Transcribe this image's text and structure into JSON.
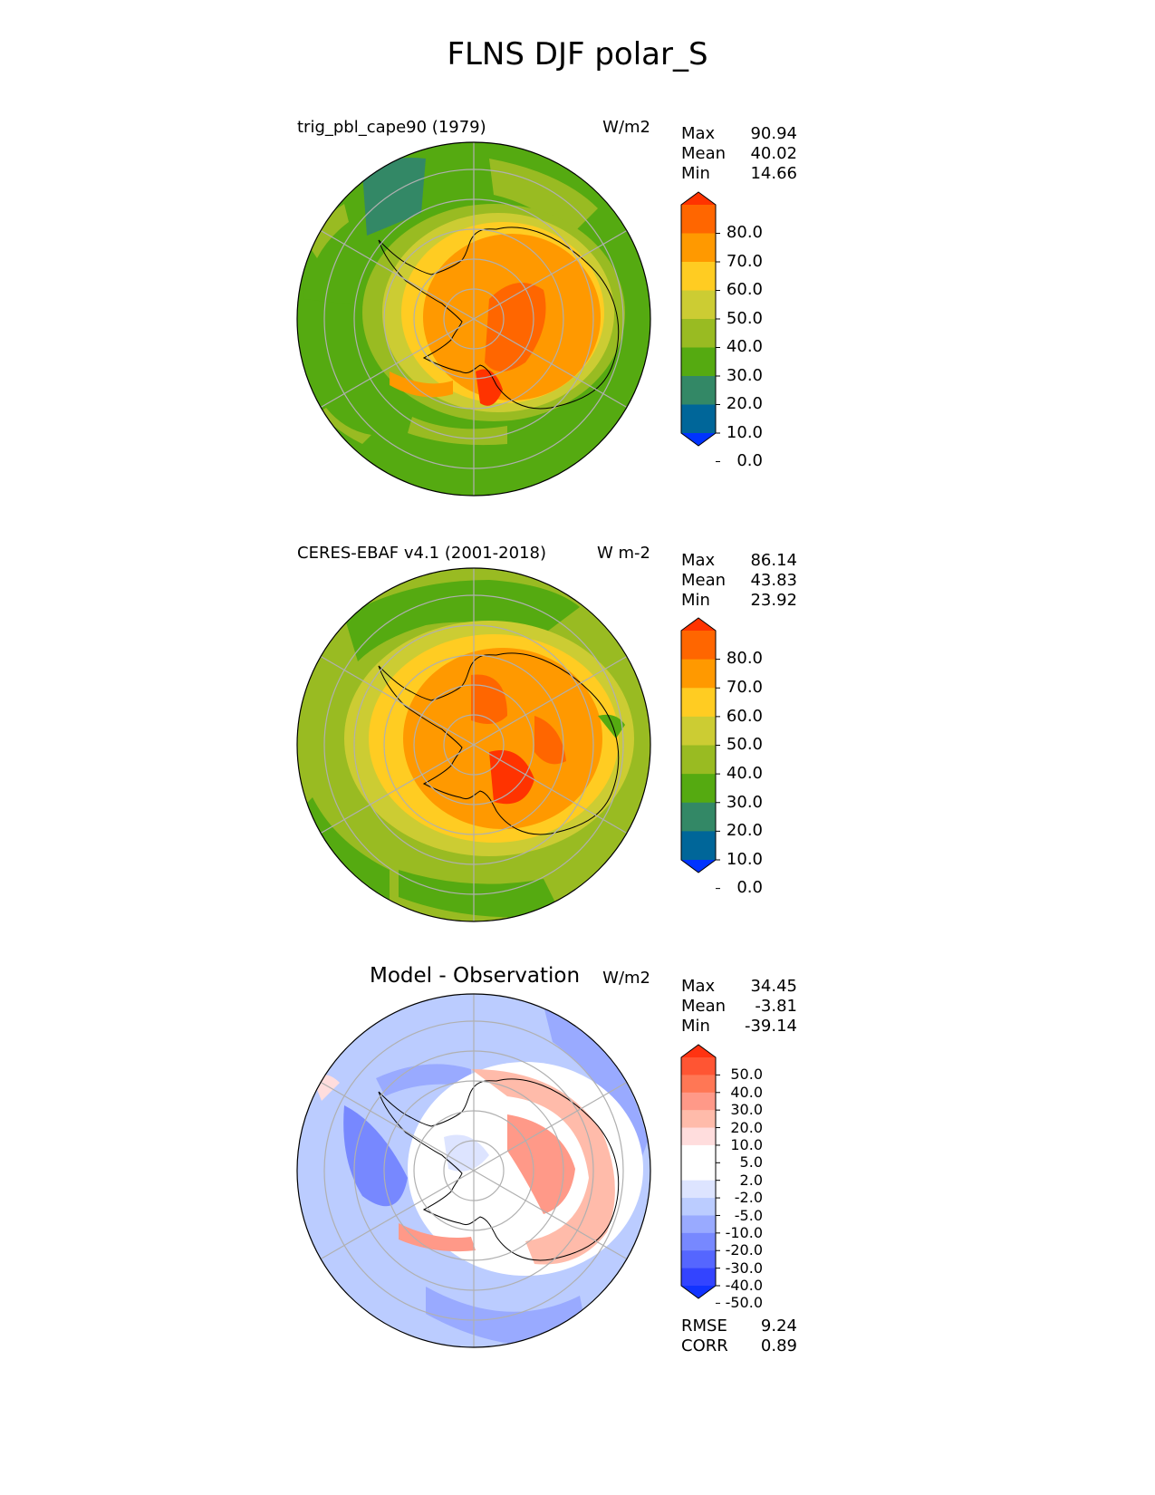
{
  "title": "FLNS DJF polar_S",
  "panels": [
    {
      "id": "model",
      "title": "trig_pbl_cape90 (1979)",
      "units": "W/m2",
      "stats": [
        {
          "label": "Max",
          "value": "90.94"
        },
        {
          "label": "Mean",
          "value": "40.02"
        },
        {
          "label": "Min",
          "value": "14.66"
        }
      ]
    },
    {
      "id": "obs",
      "title": "CERES-EBAF v4.1 (2001-2018)",
      "units": "W m-2",
      "stats": [
        {
          "label": "Max",
          "value": "86.14"
        },
        {
          "label": "Mean",
          "value": "43.83"
        },
        {
          "label": "Min",
          "value": "23.92"
        }
      ]
    },
    {
      "id": "diff",
      "title": "Model - Observation",
      "units": "W/m2",
      "stats": [
        {
          "label": "Max",
          "value": "34.45"
        },
        {
          "label": "Mean",
          "value": "-3.81"
        },
        {
          "label": "Min",
          "value": "-39.14"
        }
      ],
      "extra_stats": [
        {
          "label": "RMSE",
          "value": "9.24"
        },
        {
          "label": "CORR",
          "value": "0.89"
        }
      ]
    }
  ],
  "colorbars": {
    "field": {
      "labels": [
        "80.0",
        "70.0",
        "60.0",
        "50.0",
        "40.0",
        "30.0",
        "20.0",
        "10.0",
        "0.0"
      ],
      "colors": [
        "#ff3300",
        "#ff6600",
        "#ff9900",
        "#ffcc22",
        "#cccc33",
        "#99bb22",
        "#55aa11",
        "#338866",
        "#006699",
        "#0033ff"
      ]
    },
    "diff": {
      "labels": [
        "50.0",
        "40.0",
        "30.0",
        "20.0",
        "10.0",
        "5.0",
        "2.0",
        "-2.0",
        "-5.0",
        "-10.0",
        "-20.0",
        "-30.0",
        "-40.0",
        "-50.0"
      ],
      "colors": [
        "#ff3311",
        "#ff5533",
        "#ff7755",
        "#ff9988",
        "#ffbbaa",
        "#ffdddd",
        "#ffffff",
        "#ffffff",
        "#dde4ff",
        "#bbccff",
        "#99aaff",
        "#7788ff",
        "#5566ff",
        "#3344ff",
        "#1133ff"
      ]
    }
  },
  "chart_data": [
    {
      "type": "heatmap",
      "title": "trig_pbl_cape90 (1979)",
      "projection": "south polar stereographic",
      "units": "W/m2",
      "max": 90.94,
      "mean": 40.02,
      "min": 14.66,
      "levels": [
        0,
        10,
        20,
        30,
        40,
        50,
        60,
        70,
        80
      ]
    },
    {
      "type": "heatmap",
      "title": "CERES-EBAF v4.1 (2001-2018)",
      "projection": "south polar stereographic",
      "units": "W m-2",
      "max": 86.14,
      "mean": 43.83,
      "min": 23.92,
      "levels": [
        0,
        10,
        20,
        30,
        40,
        50,
        60,
        70,
        80
      ]
    },
    {
      "type": "heatmap",
      "title": "Model - Observation",
      "projection": "south polar stereographic",
      "units": "W/m2",
      "max": 34.45,
      "mean": -3.81,
      "min": -39.14,
      "rmse": 9.24,
      "corr": 0.89,
      "levels": [
        -50,
        -40,
        -30,
        -20,
        -10,
        -5,
        -2,
        2,
        5,
        10,
        20,
        30,
        40,
        50
      ]
    }
  ]
}
